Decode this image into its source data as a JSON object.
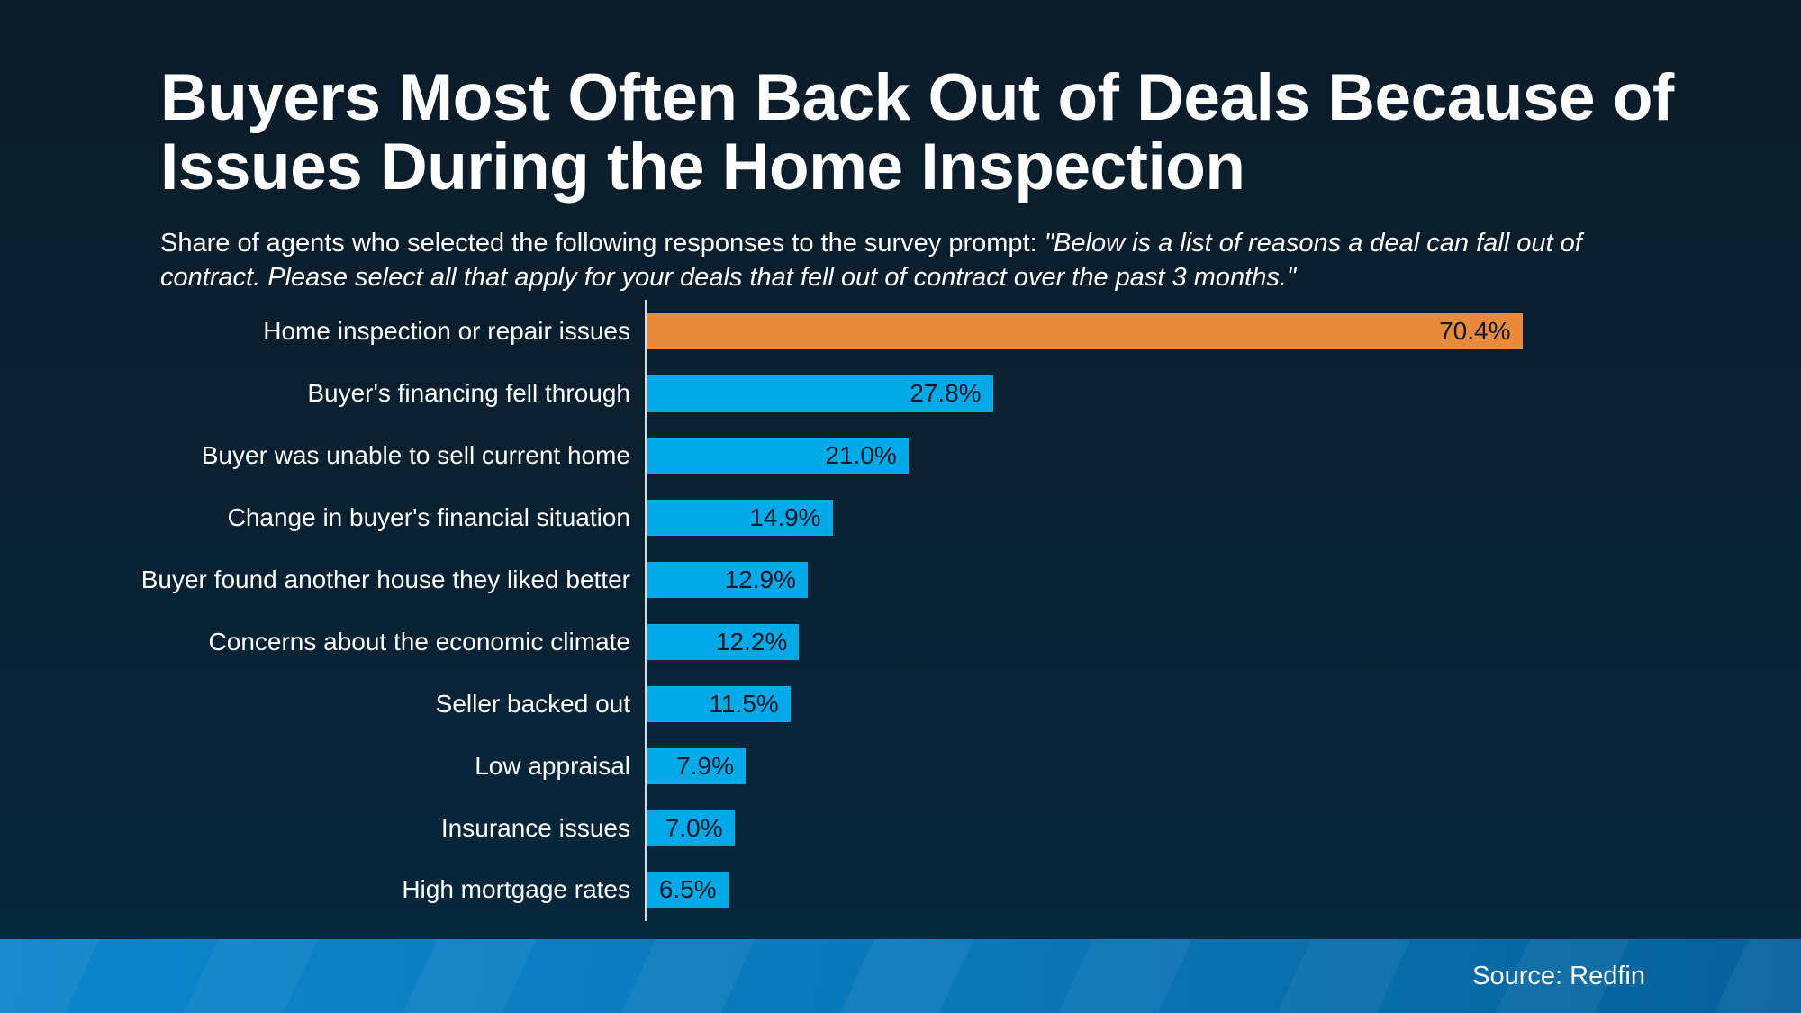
{
  "header": {
    "title_line1": "Buyers Most Often Back Out of Deals Because of",
    "title_line2": "Issues During the Home Inspection",
    "subtitle_prefix": "Share of agents who selected the following responses to the survey prompt: ",
    "subtitle_quote": "\"Below is a list of reasons a deal can fall out of contract. Please select all that apply for your deals that fell out of contract over the past 3 months.\""
  },
  "chart_data": {
    "type": "bar",
    "orientation": "horizontal",
    "title": "Buyers Most Often Back Out of Deals Because of Issues During the Home Inspection",
    "unit": "%",
    "xlim": [
      0,
      75
    ],
    "grid": false,
    "legend": false,
    "categories": [
      "Home inspection or repair issues",
      "Buyer's financing fell through",
      "Buyer was unable to sell current home",
      "Change in buyer's financial situation",
      "Buyer found another house they liked better",
      "Concerns about the economic climate",
      "Seller backed out",
      "Low appraisal",
      "Insurance issues",
      "High mortgage rates"
    ],
    "values": [
      70.4,
      27.8,
      21.0,
      14.9,
      12.9,
      12.2,
      11.5,
      7.9,
      7.0,
      6.5
    ],
    "value_labels": [
      "70.4%",
      "27.8%",
      "21.0%",
      "14.9%",
      "12.9%",
      "12.2%",
      "11.5%",
      "7.9%",
      "7.0%",
      "6.5%"
    ],
    "highlight_index": 0,
    "colors": {
      "highlight_bar": "#e8893c",
      "bar": "#00a9e8",
      "value_text": "#0b1826",
      "axis_line": "#d8dcdf"
    }
  },
  "footer": {
    "source": "Source: Redfin"
  }
}
